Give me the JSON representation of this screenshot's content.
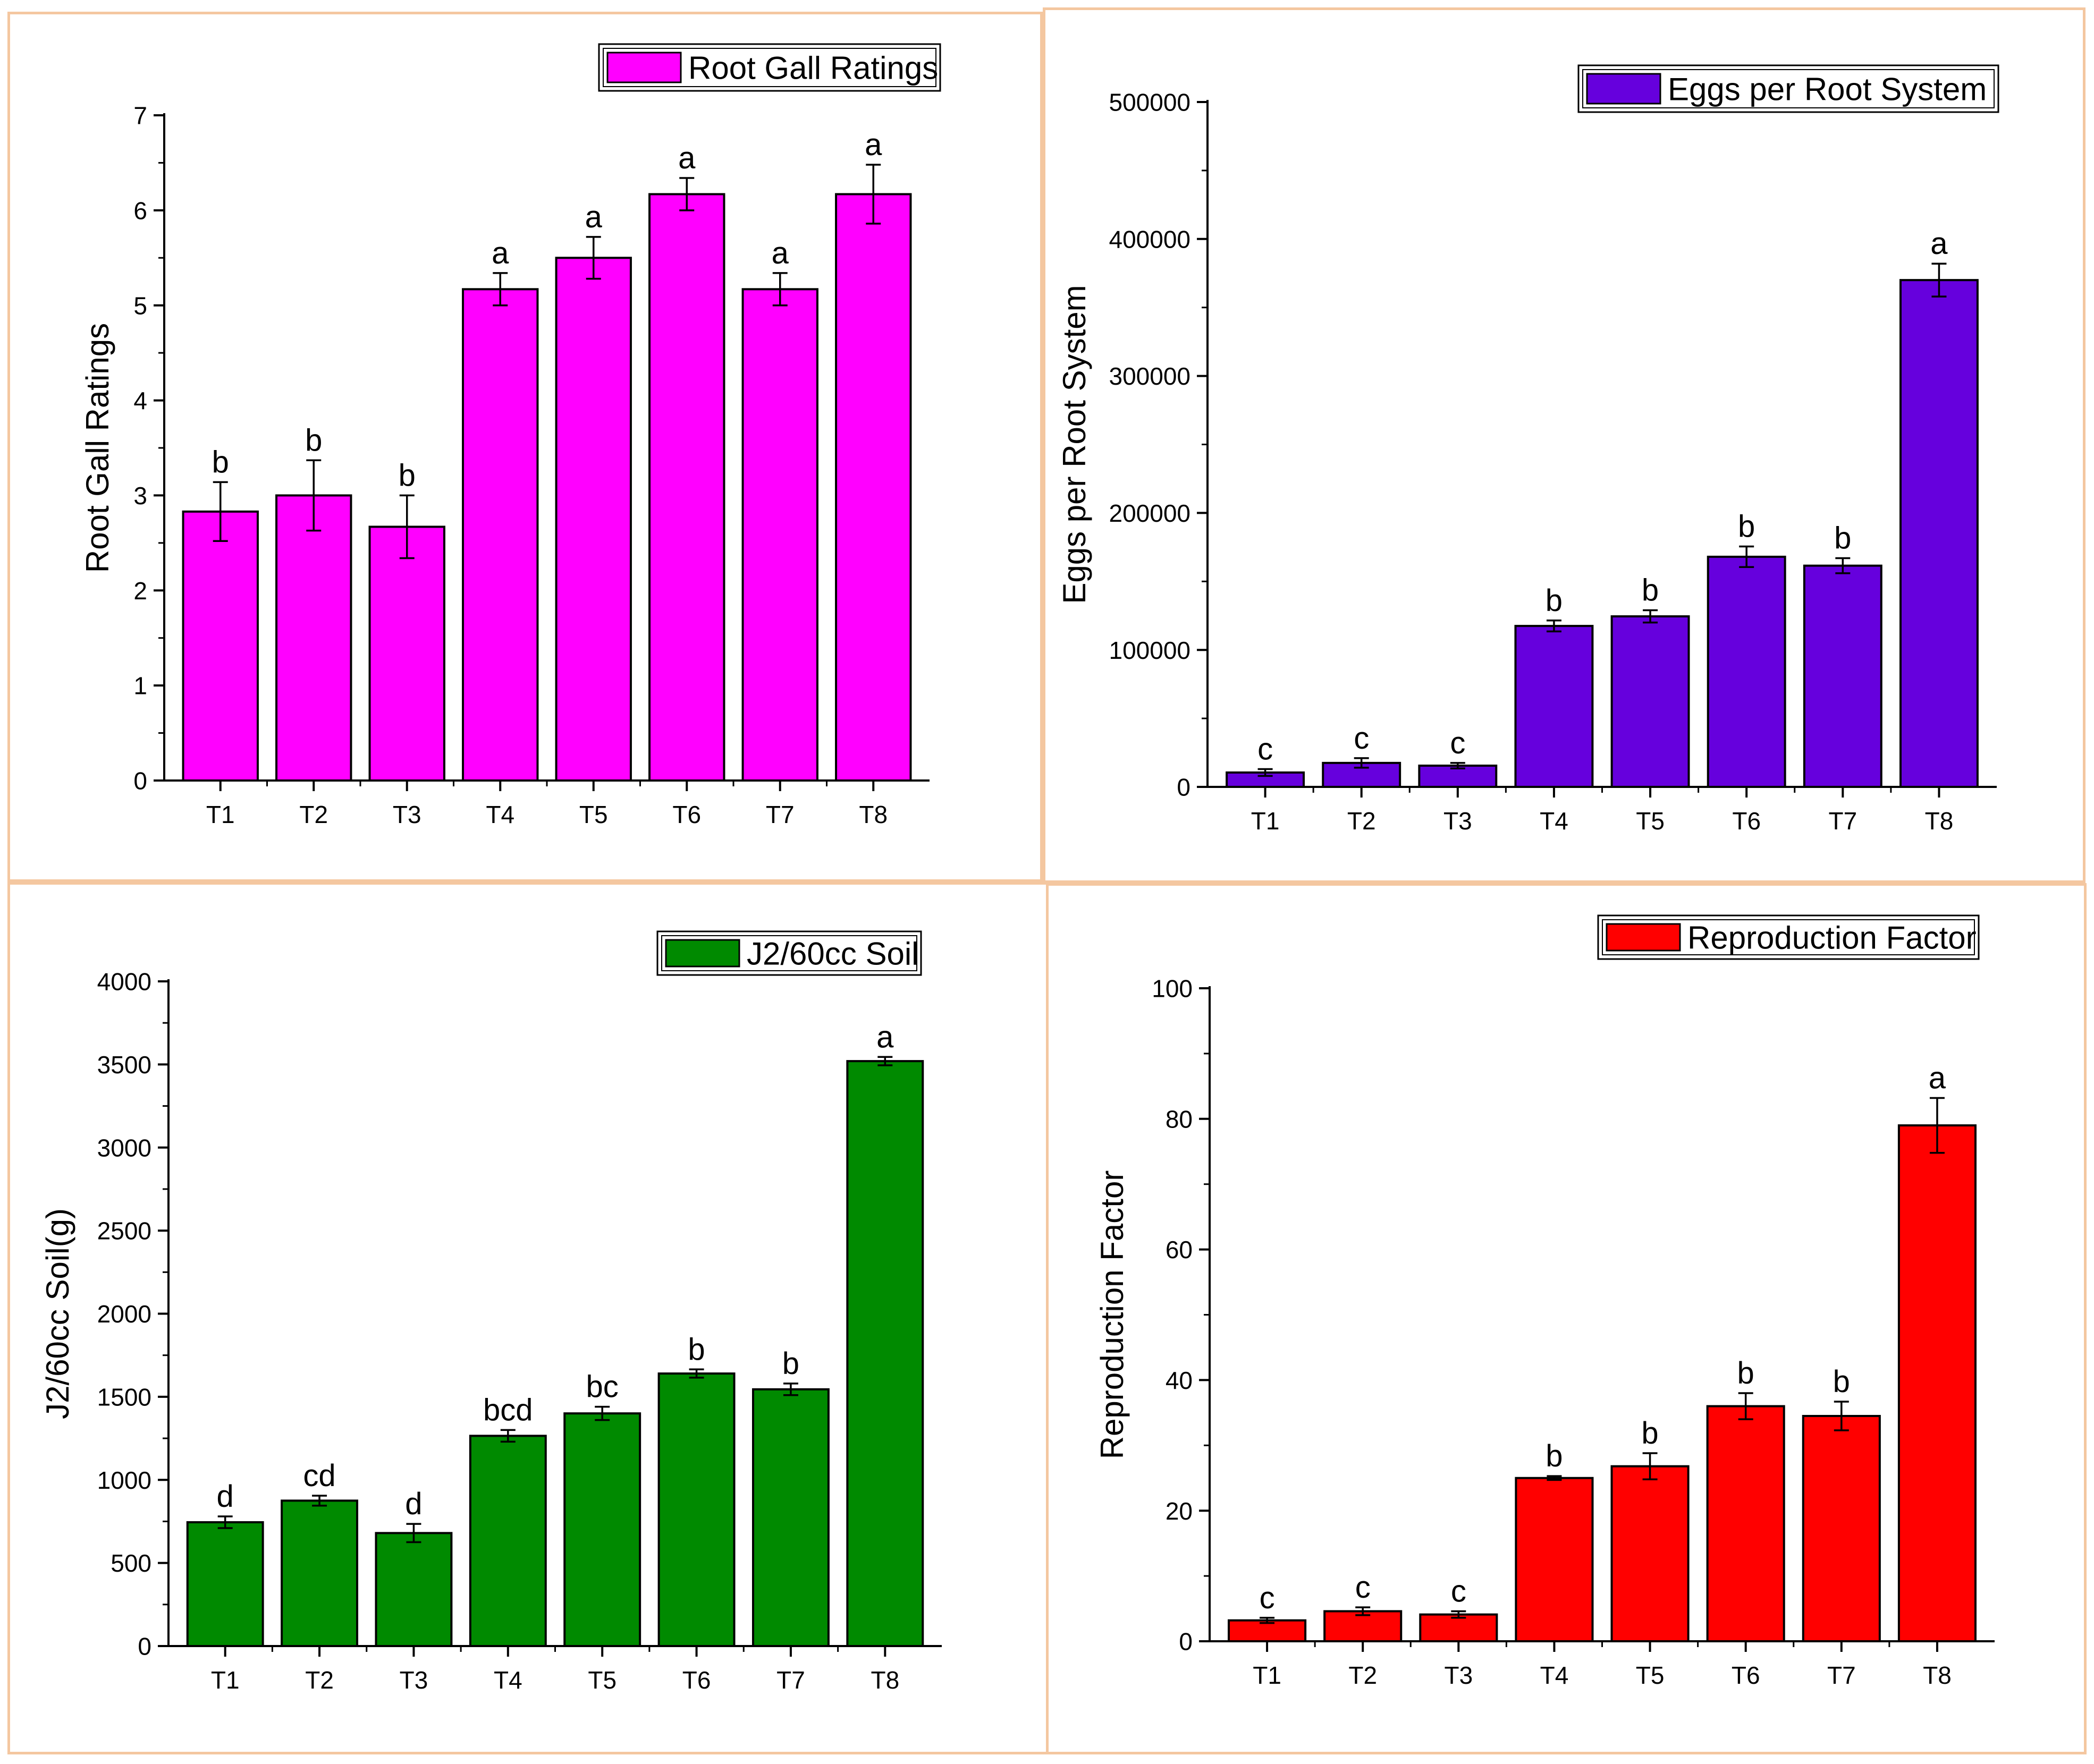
{
  "chart_data": [
    {
      "type": "bar",
      "title": "",
      "legend": "Root Gall Ratings",
      "legend_position": "top-right",
      "color": "#ff00ff",
      "xlabel": "",
      "ylabel": "Root Gall Ratings",
      "ylim": [
        0,
        7
      ],
      "yticks": [
        "0",
        "1",
        "2",
        "3",
        "4",
        "5",
        "6",
        "7"
      ],
      "categories": [
        "T1",
        "T2",
        "T3",
        "T4",
        "T5",
        "T6",
        "T7",
        "T8"
      ],
      "values": [
        2.83,
        3.0,
        2.67,
        5.17,
        5.5,
        6.17,
        5.17,
        6.17
      ],
      "errors": [
        0.31,
        0.37,
        0.33,
        0.17,
        0.22,
        0.17,
        0.17,
        0.31
      ],
      "letters": [
        "b",
        "b",
        "b",
        "a",
        "a",
        "a",
        "a",
        "a"
      ]
    },
    {
      "type": "bar",
      "title": "",
      "legend": "Eggs per Root System",
      "legend_position": "top-right",
      "color": "#6600dd",
      "xlabel": "",
      "ylabel": "Eggs per Root System",
      "ylim": [
        0,
        500000
      ],
      "yticks": [
        "0",
        "100000",
        "200000",
        "300000",
        "400000",
        "500000"
      ],
      "categories": [
        "T1",
        "T2",
        "T3",
        "T4",
        "T5",
        "T6",
        "T7",
        "T8"
      ],
      "values": [
        10500,
        17500,
        15500,
        117500,
        124500,
        168000,
        161500,
        370000
      ],
      "errors": [
        2500,
        3500,
        2000,
        4000,
        4500,
        7500,
        5500,
        12000
      ],
      "letters": [
        "c",
        "c",
        "c",
        "b",
        "b",
        "b",
        "b",
        "a"
      ]
    },
    {
      "type": "bar",
      "title": "",
      "legend": "J2/60cc Soil",
      "legend_position": "top-right",
      "color": "#008a00",
      "xlabel": "",
      "ylabel": "J2/60cc Soil(g)",
      "ylim": [
        0,
        4000
      ],
      "yticks": [
        "0",
        "500",
        "1000",
        "1500",
        "2000",
        "2500",
        "3000",
        "3500",
        "4000"
      ],
      "categories": [
        "T1",
        "T2",
        "T3",
        "T4",
        "T5",
        "T6",
        "T7",
        "T8"
      ],
      "values": [
        745,
        875,
        680,
        1265,
        1400,
        1640,
        1545,
        3520
      ],
      "errors": [
        35,
        30,
        55,
        35,
        40,
        25,
        35,
        25
      ],
      "letters": [
        "d",
        "cd",
        "d",
        "bcd",
        "bc",
        "b",
        "b",
        "a"
      ]
    },
    {
      "type": "bar",
      "title": "",
      "legend": "Reproduction Factor",
      "legend_position": "top-right",
      "color": "#ff0000",
      "xlabel": "",
      "ylabel": "Reproduction Factor",
      "ylim": [
        0,
        100
      ],
      "yticks": [
        "0",
        "20",
        "40",
        "60",
        "80",
        "100"
      ],
      "categories": [
        "T1",
        "T2",
        "T3",
        "T4",
        "T5",
        "T6",
        "T7",
        "T8"
      ],
      "values": [
        3.2,
        4.6,
        4.1,
        25.0,
        26.8,
        36.0,
        34.5,
        79.0
      ],
      "errors": [
        0.4,
        0.6,
        0.5,
        0.3,
        2.0,
        2.0,
        2.2,
        4.2
      ],
      "letters": [
        "c",
        "c",
        "c",
        "b",
        "b",
        "b",
        "b",
        "a"
      ]
    }
  ]
}
